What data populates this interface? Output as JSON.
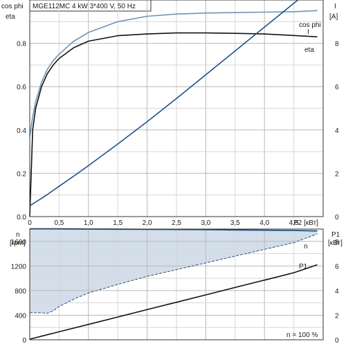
{
  "header": {
    "title": "MGE112MC   4 kW   3*400 V, 50 Hz"
  },
  "top": {
    "left_label_1": "cos phi",
    "left_label_2": "eta",
    "right_label_1": "I",
    "right_label_2": "[A]",
    "x_ticks": [
      "0",
      "0,5",
      "1,0",
      "1,5",
      "2,0",
      "2,5",
      "3,0",
      "3,5",
      "4,0",
      "4,5"
    ],
    "x_axis_label": "P2 [кВт]",
    "y_left_ticks": [
      "0.0",
      "0.2",
      "0.4",
      "0.6",
      "0.8"
    ],
    "y_right_ticks": [
      "0",
      "2",
      "4",
      "6",
      "8"
    ],
    "curve_labels": {
      "cosphi": "cos phi",
      "eta": "eta",
      "current": "I"
    }
  },
  "bottom": {
    "left_label_1": "n",
    "left_label_2": "[rpm]",
    "right_label_1": "P1",
    "right_label_2": "[кВт]",
    "y_left_ticks": [
      "0",
      "400",
      "800",
      "1200",
      "1600"
    ],
    "y_right_ticks": [
      "0",
      "2",
      "4",
      "6",
      "8"
    ],
    "curve_labels": {
      "speed": "n",
      "p1": "P1"
    },
    "note": "n = 100 %"
  },
  "chart_data": [
    {
      "type": "line",
      "title": "MGE112MC   4 kW   3*400 V, 50 Hz",
      "xlabel": "P2 [кВт]",
      "ylabel": "cos phi / eta",
      "y2label": "I [A]",
      "xlim": [
        0,
        5.0
      ],
      "ylim": [
        0,
        1.0
      ],
      "y2lim": [
        0,
        10
      ],
      "grid": true,
      "x": [
        0,
        0.05,
        0.1,
        0.2,
        0.3,
        0.4,
        0.5,
        0.75,
        1.0,
        1.5,
        2.0,
        2.5,
        3.0,
        3.5,
        4.0,
        4.5,
        4.9
      ],
      "series": [
        {
          "name": "cos phi",
          "axis": "left",
          "color": "#6d93b5",
          "values": [
            0.37,
            0.46,
            0.53,
            0.62,
            0.68,
            0.72,
            0.75,
            0.81,
            0.85,
            0.9,
            0.925,
            0.935,
            0.94,
            0.942,
            0.944,
            0.946,
            0.951
          ]
        },
        {
          "name": "eta",
          "axis": "left",
          "color": "#111111",
          "values": [
            0.0,
            0.4,
            0.5,
            0.6,
            0.66,
            0.7,
            0.73,
            0.78,
            0.81,
            0.835,
            0.843,
            0.848,
            0.848,
            0.846,
            0.843,
            0.836,
            0.83
          ]
        },
        {
          "name": "I",
          "axis": "right",
          "color": "#1e4f82",
          "values": [
            0.5,
            0.58,
            0.67,
            0.84,
            1.02,
            1.21,
            1.4,
            1.87,
            2.35,
            3.35,
            4.38,
            5.45,
            6.55,
            7.65,
            8.75,
            9.85,
            10.7
          ]
        }
      ]
    },
    {
      "type": "area",
      "title": "",
      "xlabel": "P2 [кВт]",
      "ylabel": "n [rpm]",
      "y2label": "P1 [кВт]",
      "xlim": [
        0,
        5.0
      ],
      "ylim": [
        0,
        1800
      ],
      "y2lim": [
        0,
        9
      ],
      "grid": true,
      "x": [
        0,
        0.1,
        0.2,
        0.3,
        0.4,
        0.5,
        0.75,
        1.0,
        1.5,
        2.0,
        2.5,
        3.0,
        3.5,
        4.0,
        4.5,
        4.9
      ],
      "series": [
        {
          "name": "n",
          "axis": "left",
          "color": "#1e4f82",
          "role": "max",
          "values": [
            1805,
            1805,
            1805,
            1805,
            1804,
            1803,
            1802,
            1800,
            1798,
            1795,
            1793,
            1790,
            1785,
            1782,
            1778,
            1770
          ]
        },
        {
          "name": "n",
          "axis": "left",
          "color": "#2f4f75",
          "role": "min",
          "values": [
            440,
            440,
            440,
            430,
            470,
            540,
            660,
            760,
            900,
            1030,
            1140,
            1250,
            1360,
            1470,
            1580,
            1720
          ]
        },
        {
          "name": "P1",
          "axis": "right",
          "color": "#111111",
          "values": [
            0.05,
            0.17,
            0.29,
            0.41,
            0.53,
            0.65,
            0.95,
            1.25,
            1.85,
            2.45,
            3.05,
            3.65,
            4.25,
            4.85,
            5.45,
            6.1
          ]
        }
      ],
      "annotations": [
        "n = 100 %"
      ]
    }
  ]
}
